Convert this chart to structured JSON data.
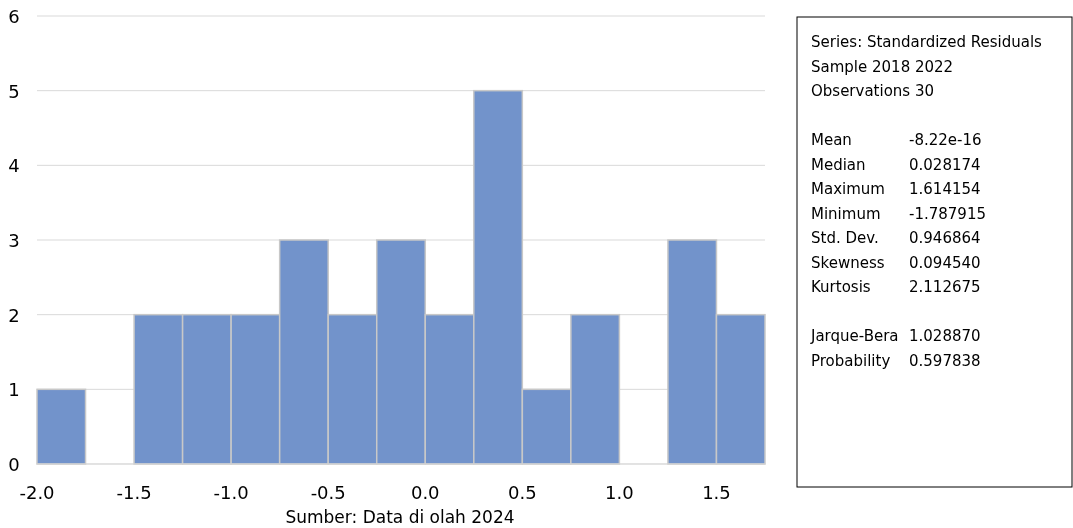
{
  "chart_data": [
    {
      "type": "histogram",
      "bins": [
        -2,
        -1.75,
        -1.5,
        -1.25,
        -1,
        -0.75,
        -0.5,
        -0.25,
        0,
        0.25,
        0.5,
        0.75,
        1,
        1.25,
        1.5,
        1.75
      ],
      "values": [
        1,
        0,
        2,
        2,
        2,
        3,
        2,
        3,
        2,
        5,
        1,
        2,
        0,
        3,
        2
      ],
      "color": "#7293cb",
      "xlim": [
        -2,
        1.75
      ],
      "xticks": [
        {
          "value": -2,
          "label": "-2.0"
        },
        {
          "value": -1.5,
          "label": "-1.5"
        },
        {
          "value": -1,
          "label": "-1.0"
        },
        {
          "value": -0.5,
          "label": "-0.5"
        },
        {
          "value": 0,
          "label": "0.0"
        },
        {
          "value": 0.5,
          "label": "0.5"
        },
        {
          "value": 1,
          "label": "1.0"
        },
        {
          "value": 1.5,
          "label": "1.5"
        }
      ],
      "ylim": [
        0,
        6
      ],
      "yticks": [
        0,
        1,
        2,
        3,
        4,
        5,
        6
      ],
      "grid": "y",
      "annotations": [
        "Sumber: Data di olah 2024"
      ]
    },
    {
      "type": "other",
      "annotations": [
        "Series: Standardized Residuals",
        "Sample 2018 2022",
        "Observations 30",
        "Mean -8.22e-16",
        "Median 0.028174",
        "Maximum 1.614154",
        "Minimum -1.787915",
        "Std. Dev. 0.946864",
        "Skewness 0.094540",
        "Kurtosis 2.112675",
        "Jarque-Bera 1.028870",
        "Probability 0.597838"
      ]
    }
  ]
}
